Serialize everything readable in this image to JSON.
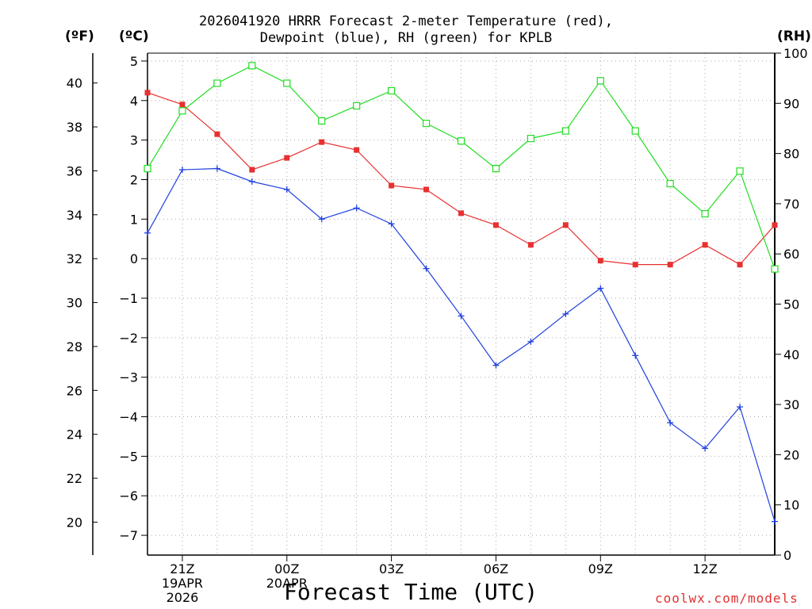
{
  "header": {
    "title_line1": "2026041920 HRRR Forecast 2-meter Temperature (red),",
    "title_line2": "Dewpoint (blue), RH (green) for KPLB"
  },
  "units": {
    "fahrenheit": "(ºF)",
    "celsius": "(ºC)",
    "rh": "(RH)"
  },
  "footer": {
    "xlabel": "Forecast Time (UTC)",
    "credit": "coolwx.com/models"
  },
  "chart_data": {
    "type": "line",
    "title": "2026041920 HRRR Forecast 2-meter Temperature (red), Dewpoint (blue), RH (green) for KPLB",
    "xlabel": "Forecast Time (UTC)",
    "x_hours": [
      20,
      21,
      22,
      23,
      24,
      25,
      26,
      27,
      28,
      29,
      30,
      31,
      32,
      33,
      34,
      35,
      36,
      37,
      38
    ],
    "xlim": [
      20,
      38
    ],
    "x_ticks": [
      {
        "hour": 21,
        "label": "21Z",
        "date1": "19APR",
        "date2": "2026"
      },
      {
        "hour": 24,
        "label": "00Z",
        "date1": "20APR",
        "date2": ""
      },
      {
        "hour": 27,
        "label": "03Z",
        "date1": "",
        "date2": ""
      },
      {
        "hour": 30,
        "label": "06Z",
        "date1": "",
        "date2": ""
      },
      {
        "hour": 33,
        "label": "09Z",
        "date1": "",
        "date2": ""
      },
      {
        "hour": 36,
        "label": "12Z",
        "date1": "",
        "date2": ""
      }
    ],
    "axes": {
      "celsius": {
        "range": [
          -7.5,
          5.2
        ],
        "ticks": [
          5,
          4,
          3,
          2,
          1,
          0,
          -1,
          -2,
          -3,
          -4,
          -5,
          -6,
          -7
        ],
        "tick_labels": [
          "5",
          "4",
          "3",
          "2",
          "1",
          "0",
          "−1",
          "−2",
          "−3",
          "−4",
          "−5",
          "−6",
          "−7"
        ]
      },
      "fahrenheit": {
        "ticks": [
          40,
          38,
          36,
          34,
          32,
          30,
          28,
          26,
          24,
          22,
          20
        ]
      },
      "rh": {
        "range": [
          0,
          100
        ],
        "ticks": [
          100,
          90,
          80,
          70,
          60,
          50,
          40,
          30,
          20,
          10,
          0
        ]
      }
    },
    "grid": true,
    "series": [
      {
        "name": "Temperature (°C)",
        "color": "#e83030",
        "marker": "filled-square",
        "axis": "celsius",
        "values": [
          4.2,
          3.9,
          3.15,
          2.25,
          2.55,
          2.95,
          2.75,
          1.85,
          1.75,
          1.15,
          0.85,
          0.35,
          0.85,
          -0.05,
          -0.15,
          -0.15,
          0.35,
          -0.15,
          0.85
        ]
      },
      {
        "name": "Dewpoint (°C)",
        "color": "#2040e0",
        "marker": "plus",
        "axis": "celsius",
        "values": [
          0.65,
          2.25,
          2.28,
          1.95,
          1.75,
          1.0,
          1.28,
          0.88,
          -0.25,
          -1.45,
          -2.7,
          -2.1,
          -1.4,
          -0.75,
          -2.45,
          -4.15,
          -4.8,
          -3.75,
          -6.65
        ]
      },
      {
        "name": "RH (%)",
        "color": "#22dd22",
        "marker": "open-square",
        "axis": "rh",
        "values": [
          77,
          88.5,
          94,
          97.5,
          94,
          86.5,
          89.5,
          92.5,
          86,
          82.5,
          77,
          83,
          84.5,
          94.5,
          84.5,
          74,
          68,
          76.5,
          57
        ]
      }
    ]
  }
}
